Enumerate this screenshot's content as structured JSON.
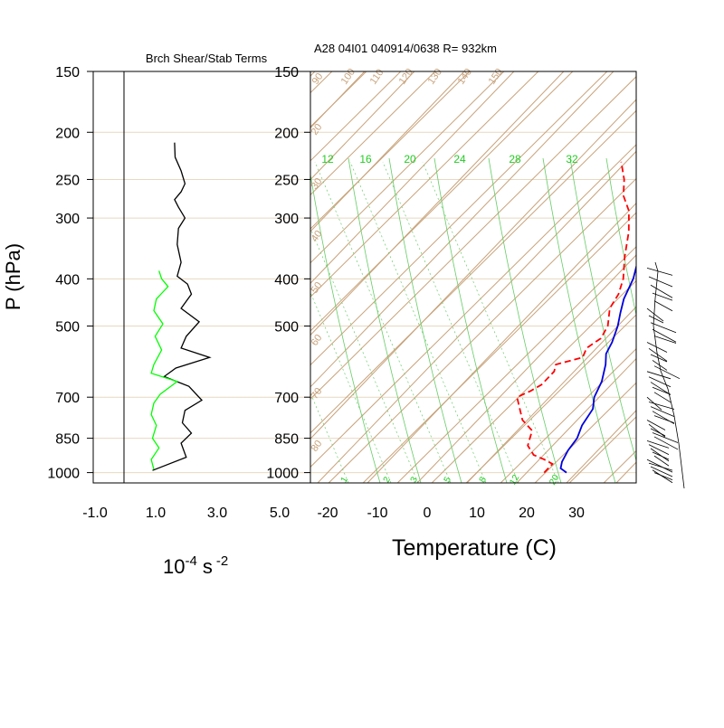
{
  "chart_data": [
    {
      "type": "line",
      "title": "Brch Shear/Stab Terms",
      "xlabel": "10-4 s -2",
      "xlabel_parts": {
        "base": "10",
        "exp1": "-4",
        "unit": "s",
        "exp2": "-2"
      },
      "ylabel": "P (hPa)",
      "x_ticks": [
        "-1.0",
        "1.0",
        "3.0",
        "5.0"
      ],
      "xlim": [
        -1.0,
        5.0
      ],
      "y_ticks": [
        150,
        200,
        250,
        300,
        400,
        500,
        700,
        850,
        1000
      ],
      "y_scale": "log",
      "ylim": [
        1000,
        150
      ],
      "series": [
        {
          "color": "#000000",
          "points": [
            [
              0.95,
              210
            ],
            [
              0.97,
              225
            ],
            [
              1.2,
              240
            ],
            [
              1.35,
              255
            ],
            [
              1.2,
              265
            ],
            [
              0.95,
              275
            ],
            [
              1.1,
              285
            ],
            [
              1.35,
              300
            ],
            [
              1.1,
              315
            ],
            [
              1.05,
              340
            ],
            [
              1.2,
              370
            ],
            [
              1.05,
              395
            ],
            [
              1.45,
              410
            ],
            [
              1.6,
              430
            ],
            [
              1.2,
              460
            ],
            [
              1.9,
              490
            ],
            [
              1.4,
              525
            ],
            [
              1.2,
              555
            ],
            [
              2.3,
              580
            ],
            [
              1.0,
              610
            ],
            [
              0.55,
              635
            ],
            [
              1.5,
              665
            ],
            [
              2.0,
              710
            ],
            [
              1.35,
              745
            ],
            [
              1.25,
              790
            ],
            [
              1.6,
              830
            ],
            [
              1.2,
              870
            ],
            [
              1.4,
              930
            ],
            [
              0.1,
              990
            ]
          ]
        },
        {
          "color": "#00ff00",
          "points": [
            [
              0.35,
              385
            ],
            [
              0.45,
              400
            ],
            [
              0.7,
              415
            ],
            [
              0.25,
              440
            ],
            [
              0.15,
              465
            ],
            [
              0.5,
              495
            ],
            [
              0.2,
              525
            ],
            [
              0.45,
              560
            ],
            [
              0.15,
              600
            ],
            [
              0.05,
              625
            ],
            [
              1.05,
              650
            ],
            [
              0.4,
              690
            ],
            [
              0.15,
              720
            ],
            [
              0.05,
              760
            ],
            [
              0.25,
              800
            ],
            [
              0.1,
              850
            ],
            [
              0.35,
              890
            ],
            [
              0.05,
              940
            ],
            [
              0.15,
              985
            ]
          ]
        }
      ]
    },
    {
      "type": "line",
      "title": "A28 04I01 040914/0638 R= 932km",
      "xlabel": "Temperature (C)",
      "x_ticks": [
        -20,
        -10,
        0,
        10,
        20,
        30
      ],
      "xlim": [
        -23,
        42
      ],
      "y_ticks": [
        150,
        200,
        250,
        300,
        400,
        500,
        700,
        850,
        1000
      ],
      "y_scale": "log",
      "ylim": [
        1000,
        150
      ],
      "skew_t": true,
      "theta_labels": [
        "20",
        "30",
        "40",
        "50",
        "60",
        "70",
        "80",
        "90",
        "100",
        "110",
        "120",
        "130",
        "140",
        "150"
      ],
      "mixing_ratio_labels": [
        "12",
        "16",
        "20",
        "24",
        "28",
        "32"
      ],
      "mixing_ratio_bottom_labels": [
        "1",
        "2",
        "3",
        "5",
        "8",
        "12",
        "20"
      ],
      "temperature": {
        "color": "#0000dd",
        "points": [
          [
            28,
            1000
          ],
          [
            26,
            980
          ],
          [
            25,
            950
          ],
          [
            24,
            900
          ],
          [
            23.5,
            850
          ],
          [
            22,
            800
          ],
          [
            21,
            740
          ],
          [
            19,
            700
          ],
          [
            17.5,
            650
          ],
          [
            15,
            600
          ],
          [
            13,
            570
          ],
          [
            12,
            540
          ],
          [
            10,
            500
          ],
          [
            8,
            470
          ],
          [
            6,
            440
          ],
          [
            4,
            400
          ],
          [
            0,
            350
          ],
          [
            -4,
            300
          ],
          [
            -8,
            260
          ],
          [
            -11,
            230
          ],
          [
            -15,
            200
          ]
        ]
      },
      "dewpoint": {
        "color": "#ff0000",
        "points": [
          [
            23.5,
            1000
          ],
          [
            23.5,
            960
          ],
          [
            21,
            940
          ],
          [
            18,
            920
          ],
          [
            15,
            880
          ],
          [
            14,
            850
          ],
          [
            13,
            820
          ],
          [
            9,
            780
          ],
          [
            7,
            750
          ],
          [
            3.5,
            700
          ],
          [
            5,
            680
          ],
          [
            6,
            660
          ],
          [
            6,
            620
          ],
          [
            5,
            600
          ],
          [
            9,
            580
          ],
          [
            8,
            555
          ],
          [
            9,
            530
          ],
          [
            8,
            500
          ],
          [
            5,
            460
          ],
          [
            4,
            430
          ],
          [
            2,
            400
          ],
          [
            -2,
            360
          ],
          [
            -6,
            320
          ],
          [
            -10,
            290
          ],
          [
            -14,
            270
          ],
          [
            -17,
            250
          ],
          [
            -21,
            230
          ]
        ]
      }
    }
  ]
}
